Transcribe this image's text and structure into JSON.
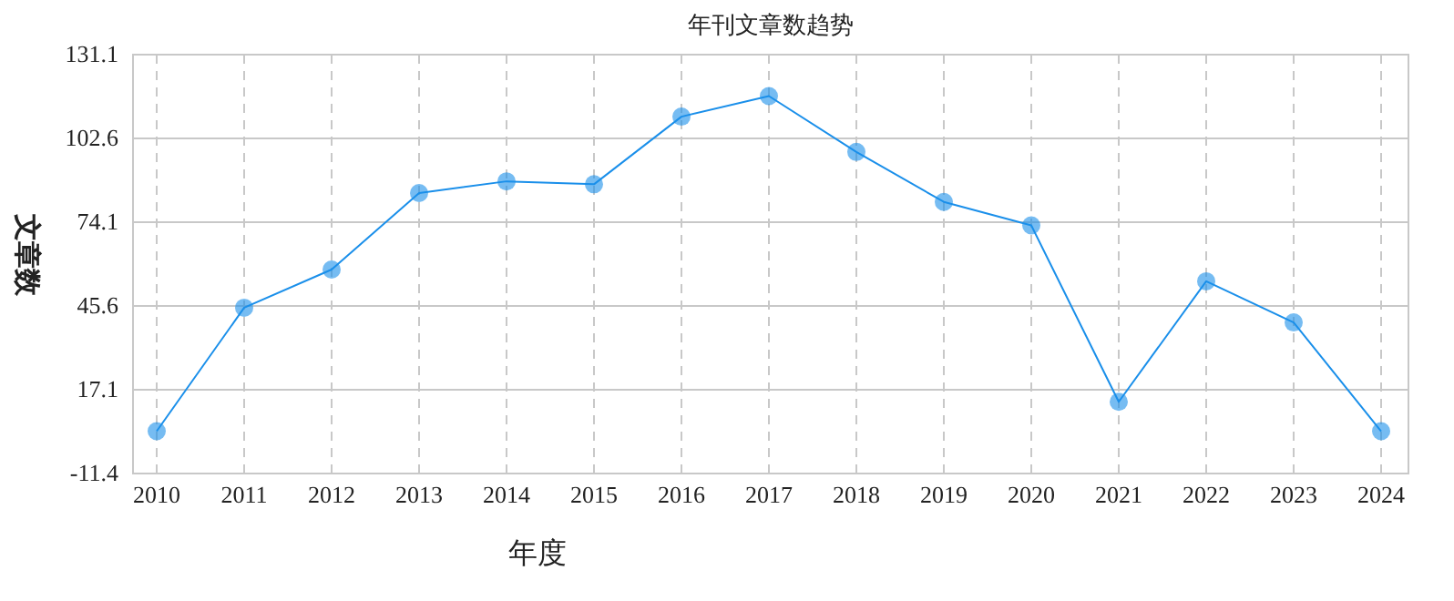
{
  "chart_data": {
    "type": "line",
    "title": "年刊文章数趋势",
    "xlabel": "年度",
    "ylabel": "文章数",
    "categories": [
      "2010",
      "2011",
      "2012",
      "2013",
      "2014",
      "2015",
      "2016",
      "2017",
      "2018",
      "2019",
      "2020",
      "2021",
      "2022",
      "2023",
      "2024"
    ],
    "series": [
      {
        "color": "#1a8fea",
        "values": [
          3,
          45,
          58,
          84,
          88,
          87,
          110,
          117,
          98,
          81,
          73,
          13,
          54,
          40,
          3
        ]
      }
    ],
    "ylim": [
      -11.4,
      131.1
    ],
    "yticks": [
      -11.4,
      17.1,
      45.6,
      74.1,
      102.6,
      131.1
    ],
    "grid": true,
    "marker": "circle",
    "line_style": "solid"
  }
}
